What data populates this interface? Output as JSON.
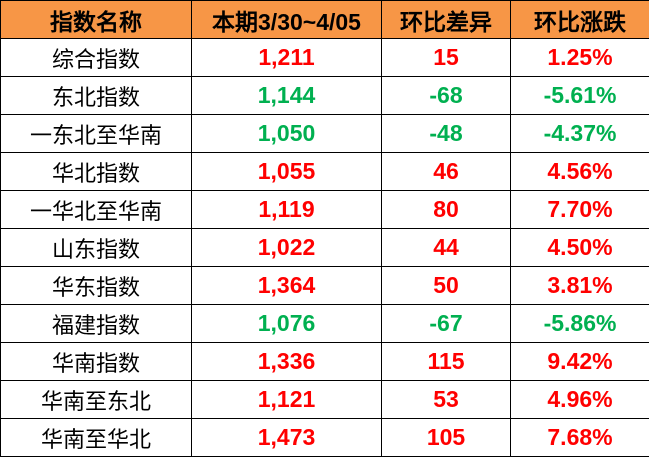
{
  "colors": {
    "header_bg": "#F79646",
    "up": "#FF0000",
    "down": "#00B050"
  },
  "headers": [
    "指数名称",
    "本期3/30~4/05",
    "环比差异",
    "环比涨跌"
  ],
  "rows": [
    {
      "name": "综合指数",
      "value": "1,211",
      "diff": "15",
      "pct": "1.25%",
      "trend": "up"
    },
    {
      "name": "东北指数",
      "value": "1,144",
      "diff": "-68",
      "pct": "-5.61%",
      "trend": "down"
    },
    {
      "name": "一东北至华南",
      "value": "1,050",
      "diff": "-48",
      "pct": "-4.37%",
      "trend": "down"
    },
    {
      "name": "华北指数",
      "value": "1,055",
      "diff": "46",
      "pct": "4.56%",
      "trend": "up"
    },
    {
      "name": "一华北至华南",
      "value": "1,119",
      "diff": "80",
      "pct": "7.70%",
      "trend": "up"
    },
    {
      "name": "山东指数",
      "value": "1,022",
      "diff": "44",
      "pct": "4.50%",
      "trend": "up"
    },
    {
      "name": "华东指数",
      "value": "1,364",
      "diff": "50",
      "pct": "3.81%",
      "trend": "up"
    },
    {
      "name": "福建指数",
      "value": "1,076",
      "diff": "-67",
      "pct": "-5.86%",
      "trend": "down"
    },
    {
      "name": "华南指数",
      "value": "1,336",
      "diff": "115",
      "pct": "9.42%",
      "trend": "up"
    },
    {
      "name": "华南至东北",
      "value": "1,121",
      "diff": "53",
      "pct": "4.96%",
      "trend": "up"
    },
    {
      "name": "华南至华北",
      "value": "1,473",
      "diff": "105",
      "pct": "7.68%",
      "trend": "up"
    }
  ]
}
